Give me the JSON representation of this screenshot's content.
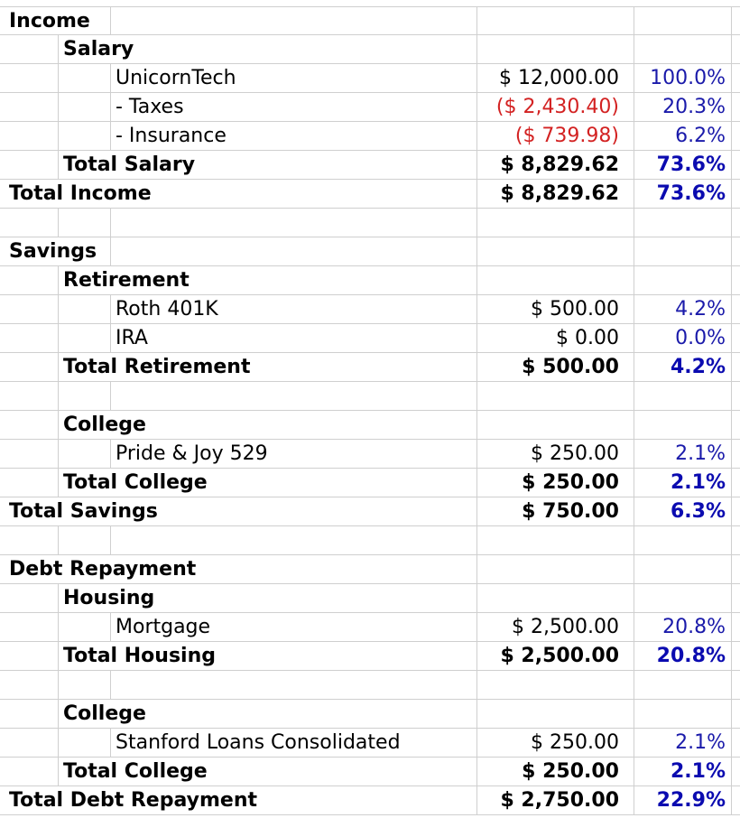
{
  "rows": [
    {
      "level": 0,
      "label": "Income",
      "amount": "",
      "percent": "",
      "bold": true,
      "kind": "section"
    },
    {
      "level": 1,
      "label": "Salary",
      "amount": "",
      "percent": "",
      "bold": true,
      "kind": "group"
    },
    {
      "level": 2,
      "label": "UnicornTech",
      "amount": "$ 12,000.00",
      "percent": "100.0%",
      "bold": false,
      "kind": "item"
    },
    {
      "level": 2,
      "label": "- Taxes",
      "amount": "($ 2,430.40)",
      "percent": "20.3%",
      "bold": false,
      "kind": "item",
      "negative": true
    },
    {
      "level": 2,
      "label": "- Insurance",
      "amount": "($ 739.98)",
      "percent": "6.2%",
      "bold": false,
      "kind": "item",
      "negative": true
    },
    {
      "level": 1,
      "label": "Total Salary",
      "amount": "$ 8,829.62",
      "percent": "73.6%",
      "bold": true,
      "kind": "subtotal"
    },
    {
      "level": 0,
      "label": "Total Income",
      "amount": "$ 8,829.62",
      "percent": "73.6%",
      "bold": true,
      "kind": "total"
    },
    {
      "level": 0,
      "label": "",
      "amount": "",
      "percent": "",
      "bold": false,
      "kind": "blank"
    },
    {
      "level": 0,
      "label": "Savings",
      "amount": "",
      "percent": "",
      "bold": true,
      "kind": "section"
    },
    {
      "level": 1,
      "label": "Retirement",
      "amount": "",
      "percent": "",
      "bold": true,
      "kind": "group"
    },
    {
      "level": 2,
      "label": "Roth 401K",
      "amount": "$ 500.00",
      "percent": "4.2%",
      "bold": false,
      "kind": "item"
    },
    {
      "level": 2,
      "label": "IRA",
      "amount": "$ 0.00",
      "percent": "0.0%",
      "bold": false,
      "kind": "item"
    },
    {
      "level": 1,
      "label": "Total Retirement",
      "amount": "$ 500.00",
      "percent": "4.2%",
      "bold": true,
      "kind": "subtotal"
    },
    {
      "level": 0,
      "label": "",
      "amount": "",
      "percent": "",
      "bold": false,
      "kind": "blank"
    },
    {
      "level": 1,
      "label": "College",
      "amount": "",
      "percent": "",
      "bold": true,
      "kind": "group"
    },
    {
      "level": 2,
      "label": "Pride & Joy 529",
      "amount": "$ 250.00",
      "percent": "2.1%",
      "bold": false,
      "kind": "item"
    },
    {
      "level": 1,
      "label": "Total College",
      "amount": "$ 250.00",
      "percent": "2.1%",
      "bold": true,
      "kind": "subtotal"
    },
    {
      "level": 0,
      "label": "Total Savings",
      "amount": "$ 750.00",
      "percent": "6.3%",
      "bold": true,
      "kind": "total"
    },
    {
      "level": 0,
      "label": "",
      "amount": "",
      "percent": "",
      "bold": false,
      "kind": "blank"
    },
    {
      "level": 0,
      "label": "Debt Repayment",
      "amount": "",
      "percent": "",
      "bold": true,
      "kind": "section"
    },
    {
      "level": 1,
      "label": "Housing",
      "amount": "",
      "percent": "",
      "bold": true,
      "kind": "group"
    },
    {
      "level": 2,
      "label": "Mortgage",
      "amount": "$ 2,500.00",
      "percent": "20.8%",
      "bold": false,
      "kind": "item"
    },
    {
      "level": 1,
      "label": "Total Housing",
      "amount": "$ 2,500.00",
      "percent": "20.8%",
      "bold": true,
      "kind": "subtotal"
    },
    {
      "level": 0,
      "label": "",
      "amount": "",
      "percent": "",
      "bold": false,
      "kind": "blank"
    },
    {
      "level": 1,
      "label": "College",
      "amount": "",
      "percent": "",
      "bold": true,
      "kind": "group"
    },
    {
      "level": 2,
      "label": "Stanford Loans Consolidated",
      "amount": "$ 250.00",
      "percent": "2.1%",
      "bold": false,
      "kind": "item"
    },
    {
      "level": 1,
      "label": "Total College",
      "amount": "$ 250.00",
      "percent": "2.1%",
      "bold": true,
      "kind": "subtotal"
    },
    {
      "level": 0,
      "label": "Total Debt Repayment",
      "amount": "$ 2,750.00",
      "percent": "22.9%",
      "bold": true,
      "kind": "total"
    }
  ],
  "colors": {
    "negative": "#d32222",
    "percent": "#1a1aaa",
    "gridline": "#cfcfcf"
  }
}
